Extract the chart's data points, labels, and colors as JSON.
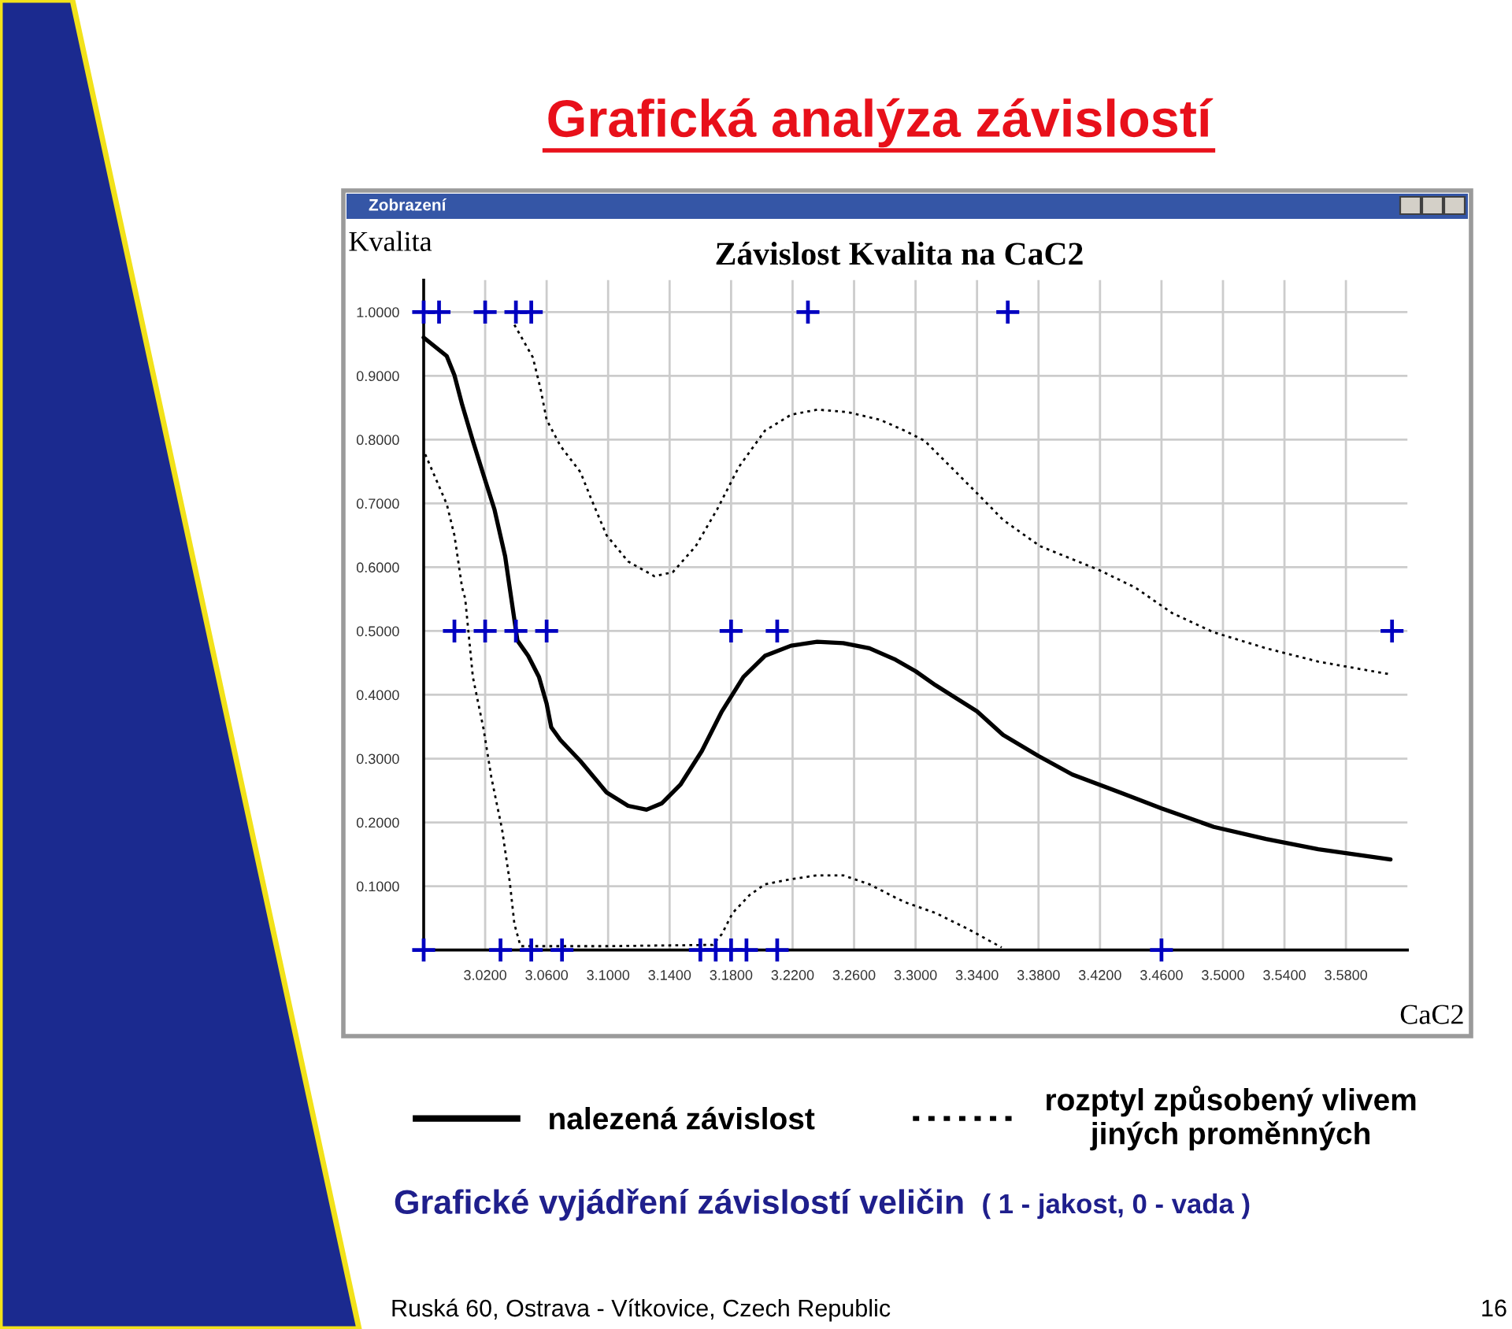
{
  "chart_data": {
    "type": "line",
    "title": "Grafická analýza závislostí",
    "subtitle": "Závislost Kvalita na CaC2",
    "xlabel": "CaC2",
    "ylabel": "Kvalita",
    "annotations": [
      "Zobrazení",
      "Grafické vyjádření závislostí veličin",
      "( 1 - jakost, 0 - vada )",
      "Ruská 60, Ostrava - Vítkovice, Czech Republic",
      "16"
    ],
    "xlim": [
      2.98,
      3.62
    ],
    "ylim": [
      0,
      1.05
    ],
    "xticks": [
      {
        "value": 3.02,
        "label": "3.0200"
      },
      {
        "value": 3.06,
        "label": "3.0600"
      },
      {
        "value": 3.1,
        "label": "3.1000"
      },
      {
        "value": 3.14,
        "label": "3.1400"
      },
      {
        "value": 3.18,
        "label": "3.1800"
      },
      {
        "value": 3.22,
        "label": "3.2200"
      },
      {
        "value": 3.26,
        "label": "3.2600"
      },
      {
        "value": 3.3,
        "label": "3.3000"
      },
      {
        "value": 3.34,
        "label": "3.3400"
      },
      {
        "value": 3.38,
        "label": "3.3800"
      },
      {
        "value": 3.42,
        "label": "3.4200"
      },
      {
        "value": 3.46,
        "label": "3.4600"
      },
      {
        "value": 3.5,
        "label": "3.5000"
      },
      {
        "value": 3.54,
        "label": "3.5400"
      },
      {
        "value": 3.58,
        "label": "3.5800"
      }
    ],
    "yticks": [
      {
        "value": 0.1,
        "label": "0.1000"
      },
      {
        "value": 0.2,
        "label": "0.2000"
      },
      {
        "value": 0.3,
        "label": "0.3000"
      },
      {
        "value": 0.4,
        "label": "0.4000"
      },
      {
        "value": 0.5,
        "label": "0.5000"
      },
      {
        "value": 0.6,
        "label": "0.6000"
      },
      {
        "value": 0.7,
        "label": "0.7000"
      },
      {
        "value": 0.8,
        "label": "0.8000"
      },
      {
        "value": 0.9,
        "label": "0.9000"
      },
      {
        "value": 1.0,
        "label": "1.0000"
      }
    ],
    "grid": true,
    "legend": "bottom",
    "series": [
      {
        "name": "nalezená závislost",
        "color": "#000000",
        "line_style": "solid",
        "x": [
          2.98,
          2.995,
          3.0,
          3.005,
          3.012,
          3.019,
          3.026,
          3.033,
          3.037,
          3.041,
          3.048,
          3.055,
          3.06,
          3.063,
          3.069,
          3.082,
          3.099,
          3.113,
          3.125,
          3.135,
          3.147,
          3.161,
          3.174,
          3.188,
          3.202,
          3.219,
          3.236,
          3.253,
          3.27,
          3.287,
          3.3,
          3.313,
          3.34,
          3.357,
          3.38,
          3.402,
          3.433,
          3.46,
          3.494,
          3.528,
          3.562,
          3.609
        ],
        "values": [
          0.96,
          0.931,
          0.901,
          0.855,
          0.798,
          0.744,
          0.691,
          0.617,
          0.551,
          0.485,
          0.461,
          0.428,
          0.386,
          0.349,
          0.329,
          0.296,
          0.247,
          0.226,
          0.22,
          0.23,
          0.259,
          0.312,
          0.374,
          0.428,
          0.461,
          0.477,
          0.483,
          0.481,
          0.473,
          0.455,
          0.437,
          0.415,
          0.374,
          0.337,
          0.304,
          0.275,
          0.247,
          0.222,
          0.193,
          0.174,
          0.158,
          0.142
        ]
      },
      {
        "name": "rozptyl způsobený vlivem\njiných proměnných",
        "color": "#000000",
        "line_style": "dotted",
        "x": [
          3.039,
          3.051,
          3.056,
          3.06,
          3.069,
          3.082,
          3.089,
          3.099,
          3.113,
          3.13,
          3.142,
          3.157,
          3.171,
          3.185,
          3.202,
          3.219,
          3.236,
          3.256,
          3.277,
          3.293,
          3.306,
          3.323,
          3.34,
          3.357,
          3.381,
          3.419,
          3.443,
          3.467,
          3.494,
          3.528,
          3.562,
          3.609
        ],
        "values": [
          0.98,
          0.929,
          0.88,
          0.831,
          0.79,
          0.749,
          0.707,
          0.65,
          0.609,
          0.586,
          0.592,
          0.633,
          0.691,
          0.757,
          0.814,
          0.839,
          0.847,
          0.843,
          0.831,
          0.814,
          0.798,
          0.757,
          0.716,
          0.674,
          0.633,
          0.596,
          0.568,
          0.528,
          0.498,
          0.473,
          0.452,
          0.432
        ]
      },
      {
        "color": "#000000",
        "line_style": "dotted",
        "x": [
          2.981,
          2.995,
          3.0,
          3.005,
          3.007,
          3.012,
          3.019,
          3.024,
          3.031,
          3.036,
          3.039,
          3.043,
          3.065,
          3.099,
          3.133,
          3.168,
          3.174,
          3.181,
          3.192,
          3.202,
          3.219,
          3.236,
          3.253,
          3.27,
          3.287,
          3.293,
          3.313,
          3.334,
          3.356
        ],
        "values": [
          0.777,
          0.699,
          0.65,
          0.568,
          0.551,
          0.428,
          0.346,
          0.271,
          0.189,
          0.107,
          0.041,
          0.006,
          0.006,
          0.006,
          0.007,
          0.008,
          0.025,
          0.058,
          0.086,
          0.103,
          0.111,
          0.117,
          0.117,
          0.103,
          0.082,
          0.075,
          0.058,
          0.033,
          0.004
        ]
      },
      {
        "type": "scatter",
        "color": "#0000c0",
        "marker": "cross",
        "x": [
          2.98,
          2.99,
          3.02,
          3.04,
          3.05,
          3.23,
          3.36,
          3.0,
          3.02,
          3.04,
          3.06,
          3.18,
          3.21,
          3.61,
          2.98,
          3.03,
          3.05,
          3.07,
          3.16,
          3.17,
          3.18,
          3.19,
          3.21,
          3.46
        ],
        "values": [
          1,
          1,
          1,
          1,
          1,
          1,
          1,
          0.5,
          0.5,
          0.5,
          0.5,
          0.5,
          0.5,
          0.5,
          0,
          0,
          0,
          0,
          0,
          0,
          0,
          0,
          0,
          0
        ]
      }
    ]
  }
}
